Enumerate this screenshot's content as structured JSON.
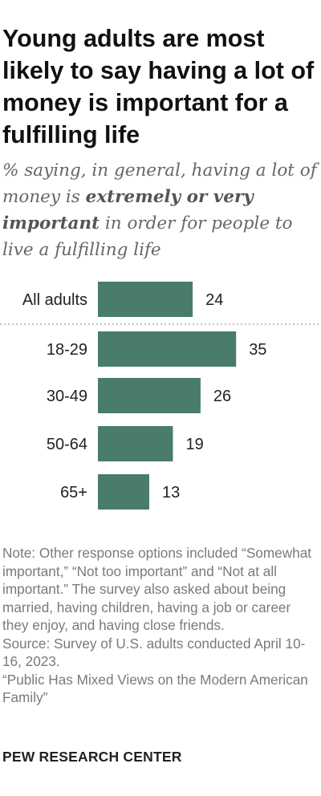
{
  "header": {
    "title": "Young adults are most likely to say having a lot of money is important for a fulfilling life",
    "subtitle_before": "% saying, in general, having a lot of money is ",
    "subtitle_bold": "extremely or very important",
    "subtitle_after": " in order for people to live a fulfilling life"
  },
  "chart_data": {
    "type": "bar",
    "orientation": "horizontal",
    "title": "Young adults are most likely to say having a lot of money is important for a fulfilling life",
    "categories": [
      "All adults",
      "18-29",
      "30-49",
      "50-64",
      "65+"
    ],
    "values": [
      24,
      35,
      26,
      19,
      13
    ],
    "data_labels": [
      "24",
      "35",
      "26",
      "19",
      "13"
    ],
    "bar_color": "#4a7c6c",
    "separator_after_first": true,
    "xlabel": "",
    "ylabel": "",
    "grid": false,
    "legend": "none"
  },
  "notes": {
    "note": "Note: Other response options included “Somewhat important,” “Not too important” and “Not at all important.” The survey also asked about being married, having children, having a job or career they enjoy, and having close friends.",
    "source": "Source: Survey of U.S. adults conducted April 10-16, 2023.",
    "report": "“Public Has Mixed Views on the Modern American Family”"
  },
  "footer": {
    "org": "PEW RESEARCH CENTER"
  },
  "colors": {
    "bar": "#4a7c6c",
    "title": "#111111",
    "subtitle": "#666666",
    "note": "#7a7a7a"
  }
}
